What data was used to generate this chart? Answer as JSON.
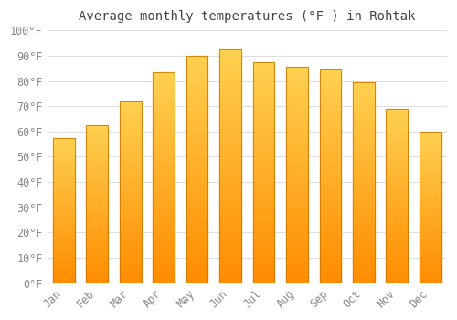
{
  "title": "Average monthly temperatures (°F ) in Rohtak",
  "categories": [
    "Jan",
    "Feb",
    "Mar",
    "Apr",
    "May",
    "Jun",
    "Jul",
    "Aug",
    "Sep",
    "Oct",
    "Nov",
    "Dec"
  ],
  "values": [
    57.5,
    62.5,
    72,
    83.5,
    90,
    92.5,
    87.5,
    85.5,
    84.5,
    79.5,
    69,
    60
  ],
  "bar_color_top": "#FFCC44",
  "bar_color_bottom": "#FF8C00",
  "bar_edge_color": "#CC7700",
  "background_color": "#FFFFFF",
  "grid_color": "#DDDDDD",
  "text_color": "#888888",
  "ylim": [
    0,
    100
  ],
  "ytick_step": 10,
  "title_fontsize": 10,
  "tick_fontsize": 8.5,
  "bar_width": 0.65
}
